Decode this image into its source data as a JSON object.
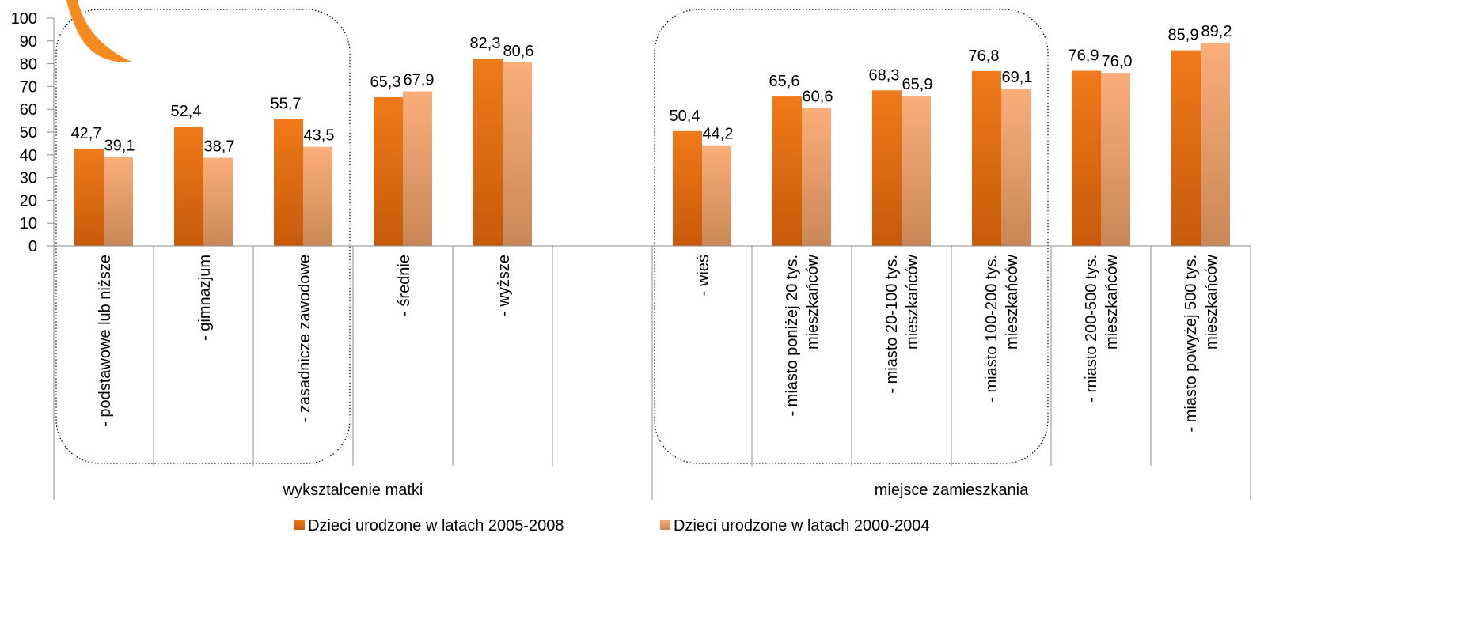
{
  "chart_data": {
    "type": "bar",
    "title": "",
    "ylim": [
      0,
      100
    ],
    "y_ticks": [
      "0",
      "10",
      "20",
      "30",
      "40",
      "50",
      "60",
      "70",
      "80",
      "90",
      "100"
    ],
    "grid": false,
    "legend_position": "bottom",
    "colors": {
      "series1_top": "#F07A1A",
      "series1_bottom": "#C75A0A",
      "series2_top": "#FBAE7A",
      "series2_bottom": "#C98757",
      "swoosh": "#F58A1F"
    },
    "categories": [
      "- podstawowe lub niższe",
      "- gimnazjum",
      "- zasadnicze zawodowe",
      "- średnie",
      "- wyższe",
      "",
      "- wieś",
      "- miasto poniżej 20 tys. mieszkańców",
      "- miasto 20-100 tys. mieszkańców",
      "- miasto 100-200 tys. mieszkańców",
      "- miasto 200-500 tys. mieszkańców",
      "- miasto powyżej 500 tys. mieszkańców"
    ],
    "category_lines": [
      [
        "- podstawowe lub niższe"
      ],
      [
        "- gimnazjum"
      ],
      [
        "- zasadnicze zawodowe"
      ],
      [
        "- średnie"
      ],
      [
        "- wyższe"
      ],
      [],
      [
        "- wieś"
      ],
      [
        "- miasto poniżej 20 tys.",
        "mieszkańców"
      ],
      [
        "- miasto 20-100 tys.",
        "mieszkańców"
      ],
      [
        "- miasto 100-200 tys.",
        "mieszkańców"
      ],
      [
        "- miasto 200-500 tys.",
        "mieszkańców"
      ],
      [
        "- miasto powyżej 500 tys.",
        "mieszkańców"
      ]
    ],
    "series": [
      {
        "name": "Dzieci urodzone w latach 2005-2008",
        "values": [
          42.7,
          52.4,
          55.7,
          65.3,
          82.3,
          null,
          50.4,
          65.6,
          68.3,
          76.8,
          76.9,
          85.9
        ],
        "labels": [
          "42,7",
          "52,4",
          "55,7",
          "65,3",
          "82,3",
          "",
          "50,4",
          "65,6",
          "68,3",
          "76,8",
          "76,9",
          "85,9"
        ]
      },
      {
        "name": "Dzieci urodzone w latach 2000-2004",
        "values": [
          39.1,
          38.7,
          43.5,
          67.9,
          80.6,
          null,
          44.2,
          60.6,
          65.9,
          69.1,
          76.0,
          89.2
        ],
        "labels": [
          "39,1",
          "38,7",
          "43,5",
          "67,9",
          "80,6",
          "",
          "44,2",
          "60,6",
          "65,9",
          "69,1",
          "76,0",
          "89,2"
        ]
      }
    ],
    "groups": [
      {
        "label": "wykształcenie matki",
        "start": 0,
        "end": 5
      },
      {
        "label": "miejsce zamieszkania",
        "start": 6,
        "end": 11
      }
    ],
    "highlight_boxes": [
      {
        "start": 0,
        "end": 2
      },
      {
        "start": 6,
        "end": 9
      }
    ]
  }
}
